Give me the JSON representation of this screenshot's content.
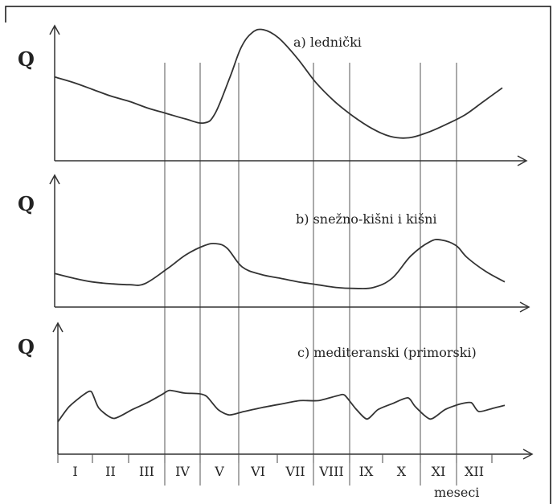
{
  "chart_data": {
    "type": "line",
    "months": [
      "I",
      "II",
      "III",
      "IV",
      "V",
      "VI",
      "VII",
      "VIII",
      "IX",
      "X",
      "XI",
      "XII"
    ],
    "x_unit_label": "meseci",
    "panels": [
      {
        "title": "a) lednički",
        "ylabel": "Q",
        "y_scale": [
          0,
          100
        ],
        "points": [
          [
            0,
            62
          ],
          [
            0.5,
            58
          ],
          [
            1,
            53
          ],
          [
            1.5,
            48
          ],
          [
            2,
            44
          ],
          [
            2.5,
            39
          ],
          [
            3,
            35
          ],
          [
            3.5,
            31
          ],
          [
            4,
            28
          ],
          [
            4.3,
            35
          ],
          [
            4.7,
            62
          ],
          [
            5,
            84
          ],
          [
            5.3,
            95
          ],
          [
            5.6,
            97
          ],
          [
            6,
            91
          ],
          [
            6.5,
            76
          ],
          [
            7,
            58
          ],
          [
            7.5,
            44
          ],
          [
            8,
            33
          ],
          [
            8.5,
            24
          ],
          [
            9,
            18
          ],
          [
            9.5,
            17
          ],
          [
            10,
            21
          ],
          [
            10.5,
            27
          ],
          [
            11,
            34
          ],
          [
            11.5,
            44
          ],
          [
            12,
            54
          ]
        ]
      },
      {
        "title": "b) snežno-kišni i kišni",
        "ylabel": "Q",
        "y_scale": [
          0,
          100
        ],
        "points": [
          [
            0,
            36
          ],
          [
            0.5,
            31
          ],
          [
            1,
            27
          ],
          [
            1.5,
            25
          ],
          [
            2,
            24
          ],
          [
            2.4,
            25
          ],
          [
            3,
            41
          ],
          [
            3.5,
            56
          ],
          [
            4,
            66
          ],
          [
            4.3,
            68
          ],
          [
            4.6,
            63
          ],
          [
            5,
            43
          ],
          [
            5.5,
            35
          ],
          [
            6,
            31
          ],
          [
            6.5,
            27
          ],
          [
            7,
            24
          ],
          [
            7.5,
            21
          ],
          [
            8,
            20
          ],
          [
            8.5,
            21
          ],
          [
            9,
            31
          ],
          [
            9.5,
            55
          ],
          [
            10,
            70
          ],
          [
            10.3,
            72
          ],
          [
            10.7,
            66
          ],
          [
            11,
            53
          ],
          [
            11.5,
            38
          ],
          [
            12,
            27
          ]
        ]
      },
      {
        "title": "c) mediteranski (primorski)",
        "ylabel": "Q",
        "y_scale": [
          0,
          100
        ],
        "points": [
          [
            0,
            18
          ],
          [
            0.3,
            40
          ],
          [
            0.7,
            58
          ],
          [
            0.9,
            62
          ],
          [
            1.1,
            38
          ],
          [
            1.5,
            23
          ],
          [
            2,
            36
          ],
          [
            2.4,
            46
          ],
          [
            2.8,
            58
          ],
          [
            3,
            64
          ],
          [
            3.4,
            60
          ],
          [
            3.8,
            59
          ],
          [
            4,
            55
          ],
          [
            4.3,
            36
          ],
          [
            4.6,
            28
          ],
          [
            5,
            33
          ],
          [
            5.5,
            39
          ],
          [
            6,
            44
          ],
          [
            6.5,
            49
          ],
          [
            7,
            49
          ],
          [
            7.5,
            56
          ],
          [
            7.7,
            57
          ],
          [
            8,
            37
          ],
          [
            8.3,
            22
          ],
          [
            8.6,
            36
          ],
          [
            9,
            45
          ],
          [
            9.4,
            53
          ],
          [
            9.6,
            40
          ],
          [
            10,
            22
          ],
          [
            10.4,
            36
          ],
          [
            10.8,
            44
          ],
          [
            11.1,
            46
          ],
          [
            11.3,
            33
          ],
          [
            11.7,
            38
          ],
          [
            12,
            42
          ]
        ]
      }
    ],
    "grid": true
  }
}
